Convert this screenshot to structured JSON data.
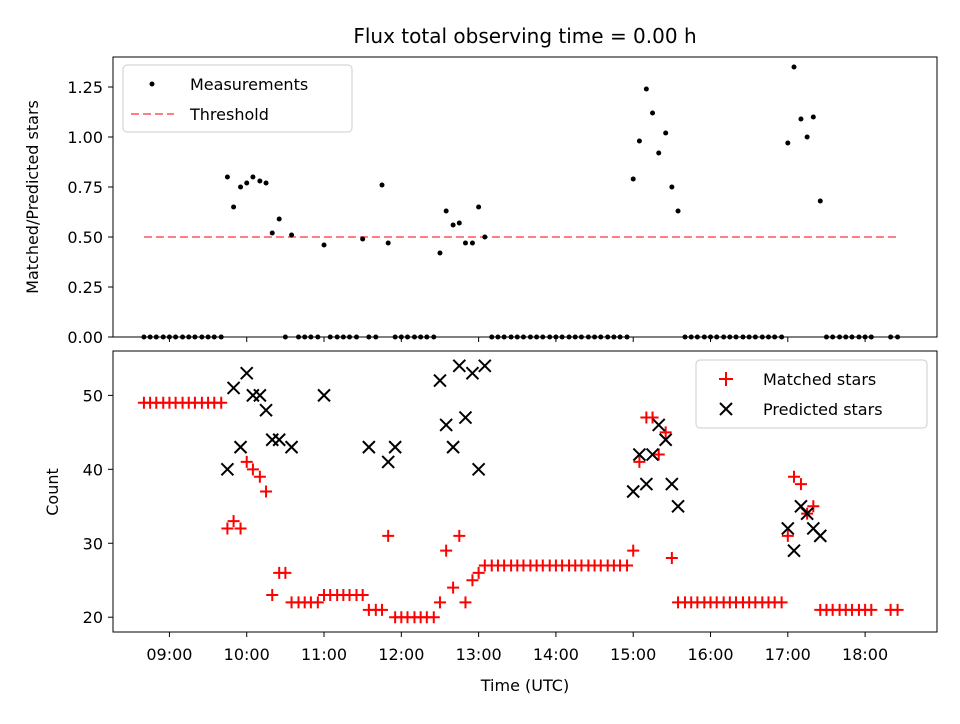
{
  "chart_data": [
    {
      "type": "scatter",
      "title": "Flux total observing time = 0.00 h",
      "xlabel": "",
      "ylabel": "Matched/Predicted stars",
      "xlim": [
        8.27,
        18.93
      ],
      "ylim": [
        0,
        1.4
      ],
      "x_ticks": [
        9,
        10,
        11,
        12,
        13,
        14,
        15,
        16,
        17,
        18
      ],
      "y_ticks": [
        0,
        0.25,
        0.5,
        0.75,
        1.0,
        1.25
      ],
      "y_tick_labels": [
        "0.00",
        "0.25",
        "0.50",
        "0.75",
        "1.00",
        "1.25"
      ],
      "legend": {
        "position": "top-left",
        "labels": [
          "Measurements",
          "Threshold"
        ]
      },
      "threshold": {
        "name": "Threshold",
        "value": 0.5,
        "x_start": 8.67,
        "x_end": 18.42,
        "color": "#ff7f7f"
      },
      "series": [
        {
          "name": "Measurements",
          "color": "#000000",
          "x": [
            8.67,
            8.75,
            8.83,
            8.92,
            9.0,
            9.08,
            9.17,
            9.25,
            9.33,
            9.42,
            9.5,
            9.58,
            9.67,
            9.75,
            9.83,
            9.92,
            10.0,
            10.08,
            10.17,
            10.25,
            10.33,
            10.42,
            10.5,
            10.58,
            10.67,
            10.75,
            10.83,
            10.92,
            11.0,
            11.08,
            11.17,
            11.25,
            11.33,
            11.42,
            11.5,
            11.58,
            11.67,
            11.75,
            11.83,
            11.92,
            12.0,
            12.08,
            12.17,
            12.25,
            12.33,
            12.42,
            12.5,
            12.58,
            12.67,
            12.75,
            12.83,
            12.92,
            13.0,
            13.08,
            13.17,
            13.25,
            13.33,
            13.42,
            13.5,
            13.58,
            13.67,
            13.75,
            13.83,
            13.92,
            14.0,
            14.08,
            14.17,
            14.25,
            14.33,
            14.42,
            14.5,
            14.58,
            14.67,
            14.75,
            14.83,
            14.92,
            15.0,
            15.08,
            15.17,
            15.25,
            15.33,
            15.42,
            15.5,
            15.58,
            15.67,
            15.75,
            15.83,
            15.92,
            16.0,
            16.08,
            16.17,
            16.25,
            16.33,
            16.42,
            16.5,
            16.58,
            16.67,
            16.75,
            16.83,
            16.92,
            17.0,
            17.08,
            17.17,
            17.25,
            17.33,
            17.42,
            17.5,
            17.58,
            17.67,
            17.75,
            17.83,
            17.92,
            18.0,
            18.08,
            18.33,
            18.42
          ],
          "y": [
            0,
            0,
            0,
            0,
            0,
            0,
            0,
            0,
            0,
            0,
            0,
            0,
            0,
            0.8,
            0.65,
            0.75,
            0.77,
            0.8,
            0.78,
            0.77,
            0.52,
            0.59,
            0,
            0.51,
            0,
            0,
            0,
            0,
            0.46,
            0,
            0,
            0,
            0,
            0,
            0.49,
            0,
            0,
            0.76,
            0.47,
            0,
            0,
            0,
            0,
            0,
            0,
            0,
            0.42,
            0.63,
            0.56,
            0.57,
            0.47,
            0.47,
            0.65,
            0.5,
            0,
            0,
            0,
            0,
            0,
            0,
            0,
            0,
            0,
            0,
            0,
            0,
            0,
            0,
            0,
            0,
            0,
            0,
            0,
            0,
            0,
            0,
            0.79,
            0.98,
            1.24,
            1.12,
            0.92,
            1.02,
            0.75,
            0.63,
            0,
            0,
            0,
            0,
            0,
            0,
            0,
            0,
            0,
            0,
            0,
            0,
            0,
            0,
            0,
            0,
            0.97,
            1.35,
            1.09,
            1.0,
            1.1,
            0.68,
            0,
            0,
            0,
            0,
            0,
            0,
            0,
            0,
            0,
            0
          ]
        }
      ]
    },
    {
      "type": "scatter",
      "title": "",
      "xlabel": "Time (UTC)",
      "ylabel": "Count",
      "xlim": [
        8.27,
        18.93
      ],
      "ylim": [
        18,
        56
      ],
      "x_ticks": [
        9,
        10,
        11,
        12,
        13,
        14,
        15,
        16,
        17,
        18
      ],
      "x_tick_labels": [
        "09:00",
        "10:00",
        "11:00",
        "12:00",
        "13:00",
        "14:00",
        "15:00",
        "16:00",
        "17:00",
        "18:00"
      ],
      "y_ticks": [
        20,
        30,
        40,
        50
      ],
      "y_tick_labels": [
        "20",
        "30",
        "40",
        "50"
      ],
      "legend": {
        "position": "top-right",
        "labels": [
          "Matched stars",
          "Predicted stars"
        ]
      },
      "series": [
        {
          "name": "Matched stars",
          "marker": "plus",
          "color": "#ff0000",
          "x": [
            8.67,
            8.75,
            8.83,
            8.92,
            9.0,
            9.08,
            9.17,
            9.25,
            9.33,
            9.42,
            9.5,
            9.58,
            9.67,
            9.75,
            9.83,
            9.92,
            10.0,
            10.08,
            10.17,
            10.25,
            10.33,
            10.42,
            10.5,
            10.58,
            10.67,
            10.75,
            10.83,
            10.92,
            11.0,
            11.08,
            11.17,
            11.25,
            11.33,
            11.42,
            11.5,
            11.58,
            11.67,
            11.75,
            11.83,
            11.92,
            12.0,
            12.08,
            12.17,
            12.25,
            12.33,
            12.42,
            12.5,
            12.58,
            12.67,
            12.75,
            12.83,
            12.92,
            13.0,
            13.08,
            13.17,
            13.25,
            13.33,
            13.42,
            13.5,
            13.58,
            13.67,
            13.75,
            13.83,
            13.92,
            14.0,
            14.08,
            14.17,
            14.25,
            14.33,
            14.42,
            14.5,
            14.58,
            14.67,
            14.75,
            14.83,
            14.92,
            15.0,
            15.08,
            15.17,
            15.25,
            15.33,
            15.42,
            15.5,
            15.58,
            15.67,
            15.75,
            15.83,
            15.92,
            16.0,
            16.08,
            16.17,
            16.25,
            16.33,
            16.42,
            16.5,
            16.58,
            16.67,
            16.75,
            16.83,
            16.92,
            17.0,
            17.08,
            17.17,
            17.25,
            17.33,
            17.42,
            17.5,
            17.58,
            17.67,
            17.75,
            17.83,
            17.92,
            18.0,
            18.08,
            18.33,
            18.42
          ],
          "y": [
            49,
            49,
            49,
            49,
            49,
            49,
            49,
            49,
            49,
            49,
            49,
            49,
            49,
            32,
            33,
            32,
            41,
            40,
            39,
            37,
            23,
            26,
            26,
            22,
            22,
            22,
            22,
            22,
            23,
            23,
            23,
            23,
            23,
            23,
            23,
            21,
            21,
            21,
            31,
            20,
            20,
            20,
            20,
            20,
            20,
            20,
            22,
            29,
            24,
            31,
            22,
            25,
            26,
            27,
            27,
            27,
            27,
            27,
            27,
            27,
            27,
            27,
            27,
            27,
            27,
            27,
            27,
            27,
            27,
            27,
            27,
            27,
            27,
            27,
            27,
            27,
            29,
            41,
            47,
            47,
            42,
            45,
            28,
            22,
            22,
            22,
            22,
            22,
            22,
            22,
            22,
            22,
            22,
            22,
            22,
            22,
            22,
            22,
            22,
            22,
            31,
            39,
            38,
            34,
            35,
            21,
            21,
            21,
            21,
            21,
            21,
            21,
            21,
            21,
            21,
            21
          ]
        },
        {
          "name": "Predicted stars",
          "marker": "x",
          "color": "#000000",
          "x": [
            9.75,
            9.83,
            9.92,
            10.0,
            10.08,
            10.17,
            10.25,
            10.33,
            10.42,
            10.58,
            11.0,
            11.58,
            11.83,
            11.92,
            12.5,
            12.58,
            12.67,
            12.75,
            12.83,
            12.92,
            13.0,
            13.08,
            15.0,
            15.08,
            15.17,
            15.25,
            15.33,
            15.42,
            15.5,
            15.58,
            17.0,
            17.08,
            17.17,
            17.25,
            17.33,
            17.42
          ],
          "y": [
            40,
            51,
            43,
            53,
            50,
            50,
            48,
            44,
            44,
            43,
            50,
            43,
            41,
            43,
            52,
            46,
            43,
            54,
            47,
            53,
            40,
            54,
            37,
            42,
            38,
            42,
            46,
            44,
            38,
            35,
            32,
            29,
            35,
            34,
            32,
            31
          ]
        }
      ]
    }
  ]
}
